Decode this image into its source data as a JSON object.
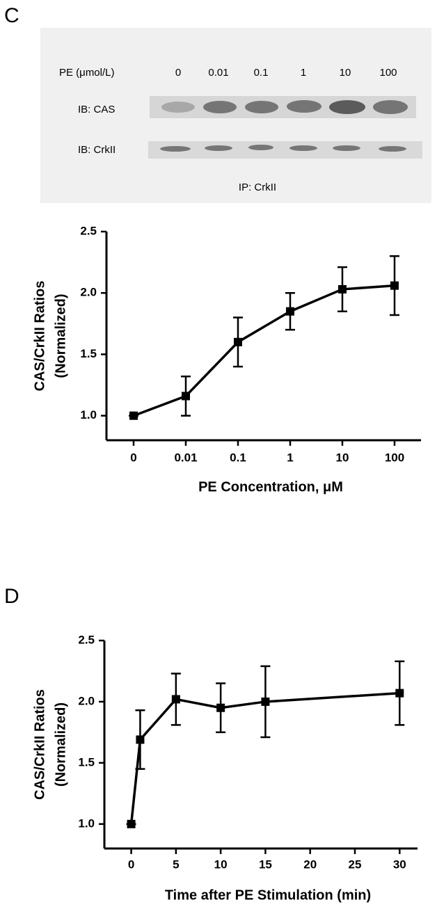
{
  "blot": {
    "panel": "C",
    "header": "PE (μmol/L)",
    "lanes": [
      "0",
      "0.01",
      "0.1",
      "1",
      "10",
      "100"
    ],
    "rows": [
      "IB: CAS",
      "IB: CrkII"
    ],
    "footer": "IP: CrkII"
  },
  "chart_data": [
    {
      "type": "line",
      "ylabel": [
        "CAS/CrkII Ratios",
        "(Normalized)"
      ],
      "xlabel": "PE Concentration, μM",
      "categories": [
        "0",
        "0.01",
        "0.1",
        "1",
        "10",
        "100"
      ],
      "values": [
        1.0,
        1.16,
        1.6,
        1.85,
        2.03,
        2.06
      ],
      "errors": [
        0,
        0.16,
        0.2,
        0.15,
        0.18,
        0.24
      ],
      "color": "#000000",
      "ylim": [
        0.8,
        2.5
      ],
      "yticks": [
        {
          "value": 1,
          "label": "1.0"
        },
        1.5,
        {
          "value": 2,
          "label": "2.0"
        },
        2.5
      ]
    },
    {
      "type": "line",
      "panel": "D",
      "ylabel": [
        "CAS/CrkII Ratios",
        "(Normalized)"
      ],
      "xlabel": "Time after PE Stimulation (min)",
      "x": [
        0,
        1,
        5,
        10,
        15,
        30
      ],
      "values": [
        1.0,
        1.69,
        2.02,
        1.95,
        2.0,
        2.07
      ],
      "errors": [
        0,
        0.24,
        0.21,
        0.2,
        0.29,
        0.26
      ],
      "color": "#000000",
      "xlim": [
        -3,
        32
      ],
      "xticks": [
        0,
        5,
        10,
        15,
        20,
        25,
        30
      ],
      "ylim": [
        0.8,
        2.5
      ],
      "yticks": [
        {
          "value": 1,
          "label": "1.0"
        },
        1.5,
        {
          "value": 2,
          "label": "2.0"
        },
        2.5
      ]
    }
  ]
}
